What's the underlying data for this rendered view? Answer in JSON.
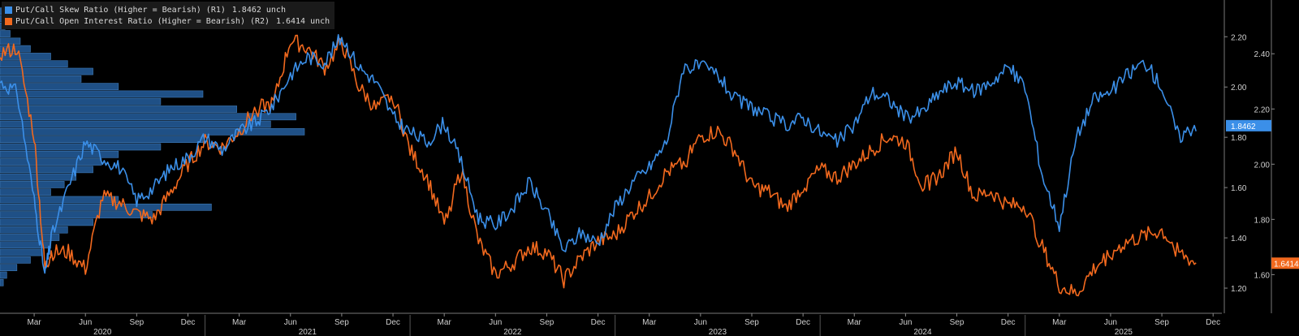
{
  "legend": {
    "series1": {
      "label": "Put/Call Skew Ratio (Higher = Bearish) (R1)",
      "value": "1.8462",
      "change": "unch",
      "color": "#3b8fe8"
    },
    "series2": {
      "label": "Put/Call Open Interest Ratio (Higher = Bearish) (R2)",
      "value": "1.6414",
      "change": "unch",
      "color": "#f2691e"
    }
  },
  "chart_data": {
    "type": "line",
    "x_month_labels": [
      "Mar",
      "Jun",
      "Sep",
      "Dec",
      "Mar",
      "Jun",
      "Sep",
      "Dec",
      "Mar",
      "Jun",
      "Sep",
      "Dec",
      "Mar",
      "Jun",
      "Sep",
      "Dec",
      "Mar",
      "Jun",
      "Sep",
      "Dec",
      "Mar",
      "Jun",
      "Sep",
      "Dec"
    ],
    "x_year_labels": [
      "2020",
      "2021",
      "2022",
      "2023",
      "2024",
      "2025"
    ],
    "y_axis_R1": {
      "ticks": [
        "1.20",
        "1.40",
        "1.60",
        "1.80",
        "2.00",
        "2.20"
      ],
      "range": [
        1.1,
        2.33
      ]
    },
    "y_axis_R2": {
      "ticks": [
        "1.60",
        "1.80",
        "2.00",
        "2.20",
        "2.40"
      ],
      "range": [
        1.46,
        2.58
      ]
    },
    "current_value_tags": {
      "R1": "1.8462",
      "R2": "1.6414"
    },
    "series": [
      {
        "name": "Put/Call Skew Ratio (Higher = Bearish) (R1)",
        "axis": "R1",
        "x": [
          "2020-01",
          "2020-02",
          "2020-03",
          "2020-03-20",
          "2020-04",
          "2020-05",
          "2020-06",
          "2020-07",
          "2020-08",
          "2020-09",
          "2020-10",
          "2020-11",
          "2020-12",
          "2021-01",
          "2021-02",
          "2021-03",
          "2021-04",
          "2021-05",
          "2021-06",
          "2021-07",
          "2021-08",
          "2021-09",
          "2021-10",
          "2021-11",
          "2021-12",
          "2022-01",
          "2022-02",
          "2022-03",
          "2022-04",
          "2022-05",
          "2022-06",
          "2022-07",
          "2022-08",
          "2022-09",
          "2022-10",
          "2022-11",
          "2022-12",
          "2023-01",
          "2023-02",
          "2023-03",
          "2023-04",
          "2023-05",
          "2023-06",
          "2023-07",
          "2023-08",
          "2023-09",
          "2023-10",
          "2023-11",
          "2023-12",
          "2024-01",
          "2024-02",
          "2024-03",
          "2024-04",
          "2024-05",
          "2024-06",
          "2024-07",
          "2024-08",
          "2024-09",
          "2024-10",
          "2024-11",
          "2024-12",
          "2025-01",
          "2025-02",
          "2025-03",
          "2025-04",
          "2025-05",
          "2025-06",
          "2025-07",
          "2025-08",
          "2025-09",
          "2025-10",
          "2025-11"
        ],
        "y": [
          2.02,
          1.98,
          1.55,
          1.25,
          1.4,
          1.6,
          1.78,
          1.72,
          1.68,
          1.55,
          1.6,
          1.68,
          1.72,
          1.8,
          1.75,
          1.82,
          1.86,
          1.93,
          2.05,
          2.12,
          2.1,
          2.2,
          2.08,
          2.02,
          1.88,
          1.82,
          1.78,
          1.86,
          1.7,
          1.48,
          1.45,
          1.52,
          1.62,
          1.5,
          1.35,
          1.42,
          1.38,
          1.52,
          1.62,
          1.68,
          1.78,
          2.08,
          2.08,
          2.05,
          1.95,
          1.92,
          1.88,
          1.85,
          1.88,
          1.82,
          1.78,
          1.85,
          1.98,
          1.95,
          1.88,
          1.9,
          1.98,
          2.02,
          1.98,
          2.02,
          2.08,
          2.0,
          1.65,
          1.45,
          1.8,
          1.95,
          1.98,
          2.05,
          2.1,
          2.0,
          1.8,
          1.85
        ]
      },
      {
        "name": "Put/Call Open Interest Ratio (Higher = Bearish) (R2)",
        "axis": "R2",
        "x": [
          "2020-01",
          "2020-02",
          "2020-03",
          "2020-03-20",
          "2020-04",
          "2020-05",
          "2020-06",
          "2020-07",
          "2020-08",
          "2020-09",
          "2020-10",
          "2020-11",
          "2020-12",
          "2021-01",
          "2021-02",
          "2021-03",
          "2021-04",
          "2021-05",
          "2021-06",
          "2021-07",
          "2021-08",
          "2021-09",
          "2021-10",
          "2021-11",
          "2021-12",
          "2022-01",
          "2022-02",
          "2022-03",
          "2022-04",
          "2022-05",
          "2022-06",
          "2022-07",
          "2022-08",
          "2022-09",
          "2022-10",
          "2022-11",
          "2022-12",
          "2023-01",
          "2023-02",
          "2023-03",
          "2023-04",
          "2023-05",
          "2023-06",
          "2023-07",
          "2023-08",
          "2023-09",
          "2023-10",
          "2023-11",
          "2023-12",
          "2024-01",
          "2024-02",
          "2024-03",
          "2024-04",
          "2024-05",
          "2024-06",
          "2024-07",
          "2024-08",
          "2024-09",
          "2024-10",
          "2024-11",
          "2024-12",
          "2025-01",
          "2025-02",
          "2025-03",
          "2025-04",
          "2025-05",
          "2025-06",
          "2025-07",
          "2025-08",
          "2025-09",
          "2025-10",
          "2025-11"
        ],
        "y": [
          2.4,
          2.42,
          2.1,
          1.62,
          1.68,
          1.68,
          1.62,
          1.88,
          1.86,
          1.82,
          1.8,
          1.9,
          2.0,
          2.08,
          2.06,
          2.12,
          2.2,
          2.22,
          2.45,
          2.42,
          2.35,
          2.44,
          2.28,
          2.2,
          2.25,
          2.05,
          1.95,
          1.78,
          1.98,
          1.72,
          1.6,
          1.64,
          1.7,
          1.68,
          1.58,
          1.66,
          1.72,
          1.74,
          1.82,
          1.88,
          1.97,
          2.0,
          2.1,
          2.12,
          2.05,
          1.92,
          1.9,
          1.84,
          1.92,
          1.98,
          1.95,
          2.0,
          2.05,
          2.1,
          2.08,
          1.92,
          1.96,
          2.05,
          1.88,
          1.9,
          1.85,
          1.85,
          1.7,
          1.56,
          1.53,
          1.62,
          1.68,
          1.72,
          1.74,
          1.76,
          1.68,
          1.64
        ]
      }
    ],
    "distribution_histogram": {
      "note": "frequency profile of R1 values drawn on the left",
      "y_levels": [
        2.3,
        2.27,
        2.24,
        2.21,
        2.18,
        2.15,
        2.12,
        2.09,
        2.06,
        2.03,
        2.0,
        1.97,
        1.94,
        1.91,
        1.88,
        1.85,
        1.82,
        1.79,
        1.76,
        1.73,
        1.7,
        1.67,
        1.64,
        1.61,
        1.58,
        1.55,
        1.52,
        1.49,
        1.46,
        1.43,
        1.4,
        1.37,
        1.34,
        1.31,
        1.28,
        1.25,
        1.22
      ],
      "counts": [
        1,
        2,
        3,
        6,
        12,
        18,
        30,
        40,
        55,
        48,
        70,
        120,
        95,
        140,
        175,
        160,
        180,
        120,
        95,
        70,
        60,
        55,
        45,
        38,
        30,
        70,
        125,
        90,
        55,
        40,
        35,
        30,
        25,
        18,
        10,
        4,
        2
      ]
    }
  }
}
